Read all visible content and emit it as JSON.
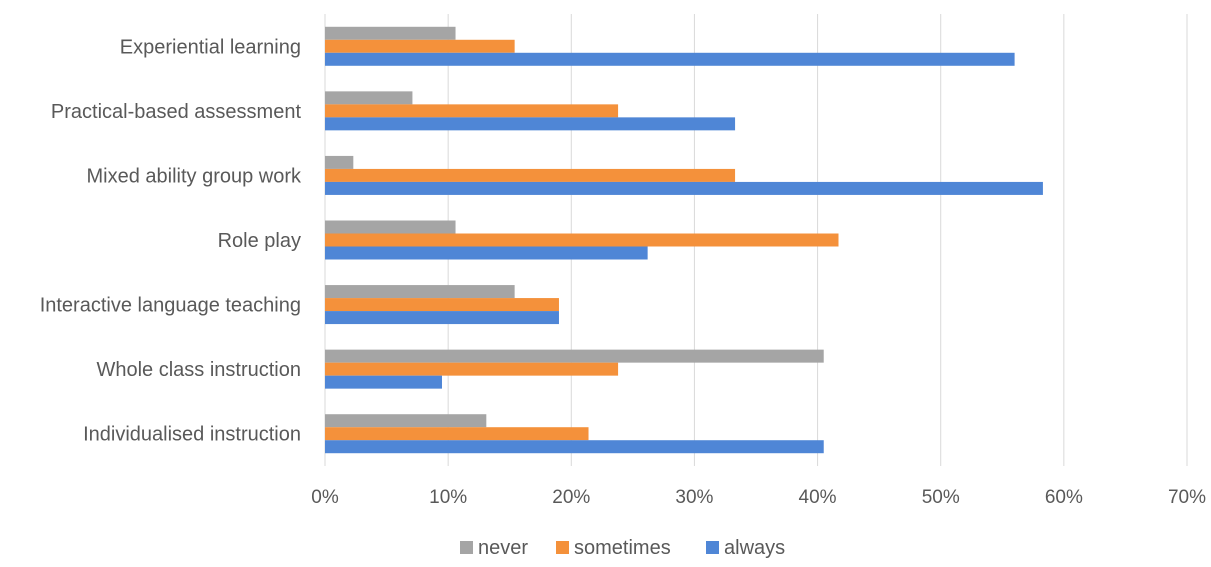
{
  "chart_data": {
    "type": "bar",
    "orientation": "horizontal",
    "title": "",
    "xlabel": "",
    "ylabel": "",
    "categories": [
      "Experiential learning",
      "Practical-based assessment",
      "Mixed ability group work",
      "Role play",
      "Interactive language teaching",
      "Whole class instruction",
      "Individualised instruction"
    ],
    "series": [
      {
        "name": "never",
        "color": "#a5a5a5",
        "values": [
          10.6,
          7.1,
          2.3,
          10.6,
          15.4,
          40.5,
          13.1
        ]
      },
      {
        "name": "sometimes",
        "color": "#f4913b",
        "values": [
          15.4,
          23.8,
          33.3,
          41.7,
          19.0,
          23.8,
          21.4
        ]
      },
      {
        "name": "always",
        "color": "#4f86d6",
        "values": [
          56.0,
          33.3,
          58.3,
          26.2,
          19.0,
          9.5,
          40.5
        ]
      }
    ],
    "xlim": [
      0,
      70
    ],
    "xticks": [
      "0%",
      "10%",
      "20%",
      "30%",
      "40%",
      "50%",
      "60%",
      "70%"
    ],
    "grid": true,
    "legend_position": "bottom"
  }
}
